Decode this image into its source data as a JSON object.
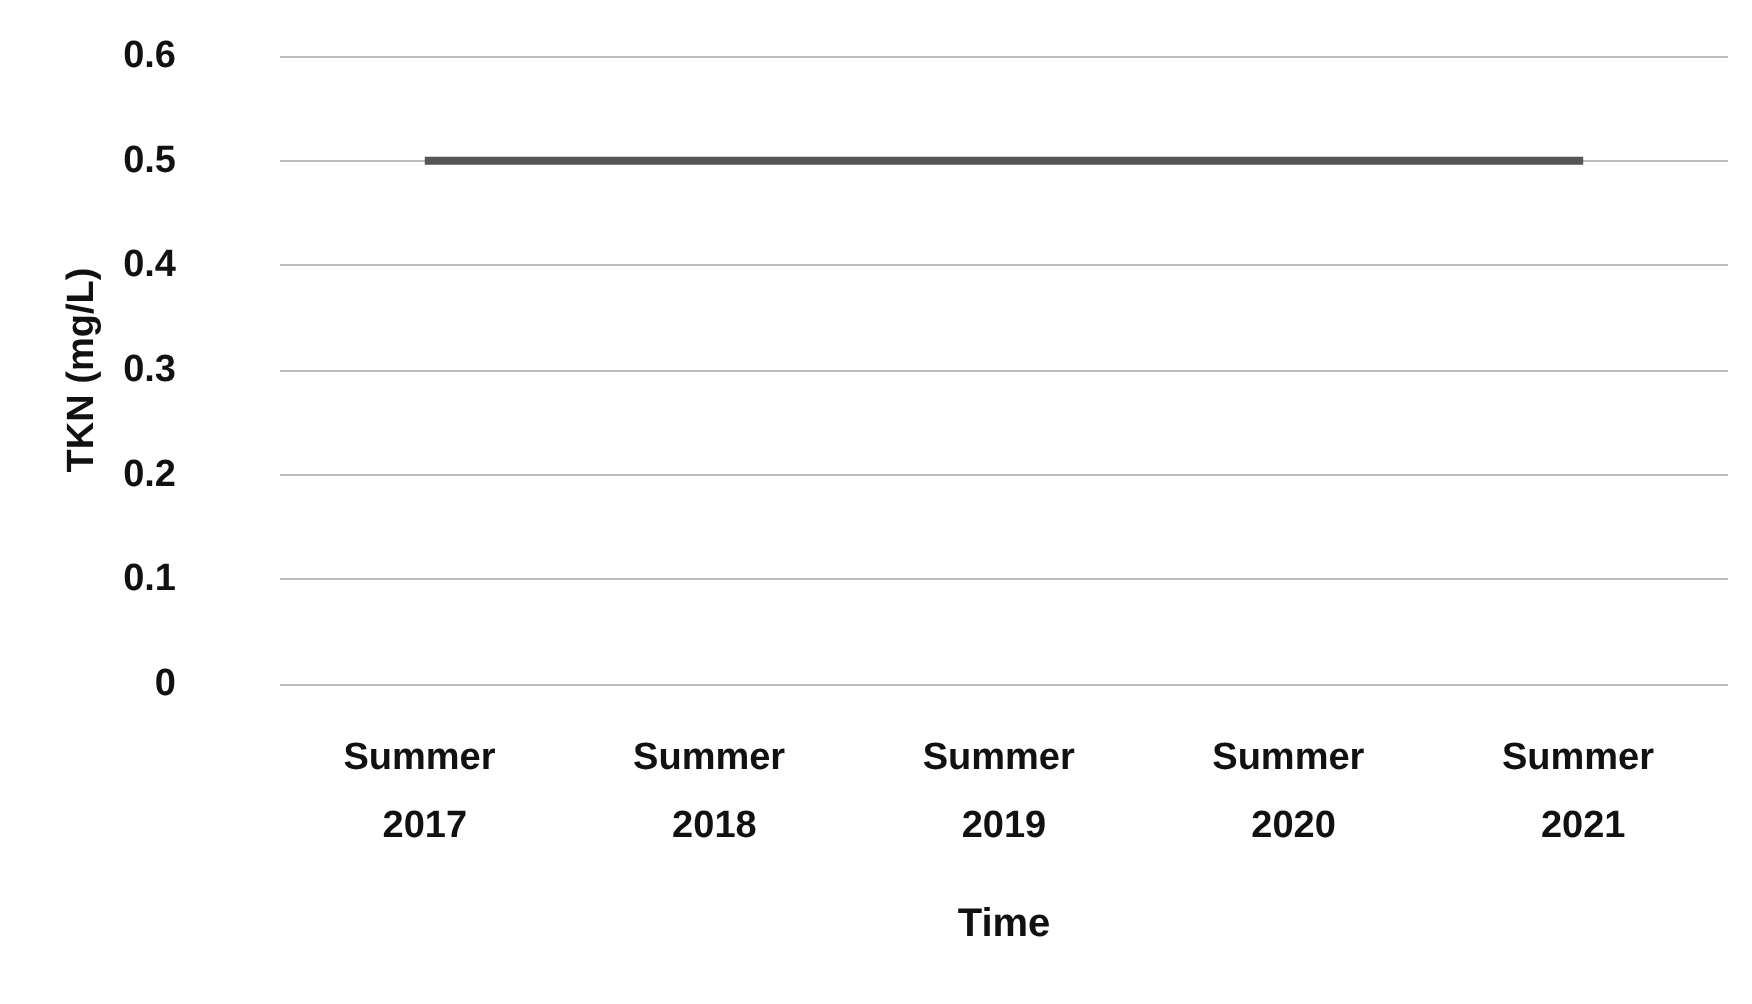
{
  "chart_data": {
    "type": "line",
    "xlabel": "Time",
    "ylabel": "TKN (mg/L)",
    "categories": [
      "Summer 2017",
      "Summer 2018",
      "Summer 2019",
      "Summer 2020",
      "Summer 2021"
    ],
    "series": [
      {
        "color": "#555555",
        "values": [
          0.5,
          0.5,
          0.5,
          0.5,
          0.5
        ]
      }
    ],
    "ylim": [
      0,
      0.6
    ],
    "yticks": [
      0,
      0.1,
      0.2,
      0.3,
      0.4,
      0.5,
      0.6
    ],
    "grid": "y",
    "marker": "none",
    "line_style": "solid"
  }
}
